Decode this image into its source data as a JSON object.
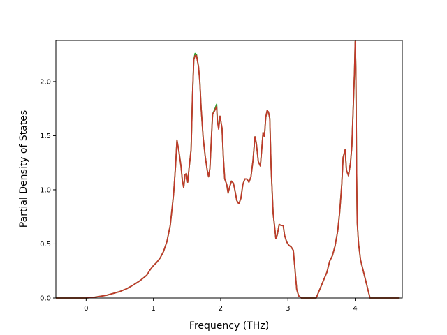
{
  "chart_data": {
    "type": "line",
    "title": "",
    "xlabel": "Frequency (THz)",
    "ylabel": "Partial Density of States",
    "xlim": [
      -0.45,
      4.7
    ],
    "ylim": [
      0.0,
      2.38
    ],
    "xticks": [
      0,
      1,
      2,
      3,
      4
    ],
    "yticks": [
      0.0,
      0.5,
      1.0,
      1.5,
      2.0
    ],
    "xtick_labels": [
      "0",
      "1",
      "2",
      "3",
      "4"
    ],
    "ytick_labels": [
      "0.0",
      "0.5",
      "1.0",
      "1.5",
      "2.0"
    ],
    "grid": false,
    "legend": "none",
    "series": [
      {
        "color": "#2ca02c",
        "points": [
          [
            -0.45,
            0
          ],
          [
            0,
            0
          ],
          [
            0.1,
            0.005
          ],
          [
            0.3,
            0.025
          ],
          [
            0.5,
            0.06
          ],
          [
            0.6,
            0.085
          ],
          [
            0.7,
            0.12
          ],
          [
            0.8,
            0.16
          ],
          [
            0.9,
            0.21
          ],
          [
            0.95,
            0.26
          ],
          [
            1.0,
            0.3
          ],
          [
            1.05,
            0.33
          ],
          [
            1.1,
            0.37
          ],
          [
            1.15,
            0.43
          ],
          [
            1.2,
            0.52
          ],
          [
            1.25,
            0.67
          ],
          [
            1.3,
            0.96
          ],
          [
            1.33,
            1.23
          ],
          [
            1.35,
            1.46
          ],
          [
            1.38,
            1.35
          ],
          [
            1.41,
            1.22
          ],
          [
            1.43,
            1.09
          ],
          [
            1.45,
            1.02
          ],
          [
            1.47,
            1.14
          ],
          [
            1.49,
            1.15
          ],
          [
            1.51,
            1.07
          ],
          [
            1.53,
            1.2
          ],
          [
            1.56,
            1.37
          ],
          [
            1.58,
            1.85
          ],
          [
            1.6,
            2.2
          ],
          [
            1.62,
            2.26
          ],
          [
            1.64,
            2.25
          ],
          [
            1.67,
            2.14
          ],
          [
            1.69,
            2.0
          ],
          [
            1.71,
            1.75
          ],
          [
            1.74,
            1.48
          ],
          [
            1.77,
            1.31
          ],
          [
            1.8,
            1.18
          ],
          [
            1.82,
            1.12
          ],
          [
            1.84,
            1.2
          ],
          [
            1.86,
            1.45
          ],
          [
            1.88,
            1.7
          ],
          [
            1.91,
            1.74
          ],
          [
            1.94,
            1.79
          ],
          [
            1.95,
            1.65
          ],
          [
            1.97,
            1.57
          ],
          [
            1.99,
            1.68
          ],
          [
            2.02,
            1.57
          ],
          [
            2.04,
            1.3
          ],
          [
            2.06,
            1.1
          ],
          [
            2.09,
            1.05
          ],
          [
            2.11,
            0.97
          ],
          [
            2.14,
            1.04
          ],
          [
            2.16,
            1.08
          ],
          [
            2.19,
            1.06
          ],
          [
            2.21,
            1.0
          ],
          [
            2.24,
            0.9
          ],
          [
            2.27,
            0.87
          ],
          [
            2.3,
            0.92
          ],
          [
            2.33,
            1.05
          ],
          [
            2.36,
            1.1
          ],
          [
            2.39,
            1.1
          ],
          [
            2.42,
            1.07
          ],
          [
            2.45,
            1.12
          ],
          [
            2.48,
            1.27
          ],
          [
            2.51,
            1.49
          ],
          [
            2.53,
            1.43
          ],
          [
            2.56,
            1.26
          ],
          [
            2.59,
            1.22
          ],
          [
            2.61,
            1.37
          ],
          [
            2.63,
            1.53
          ],
          [
            2.65,
            1.49
          ],
          [
            2.67,
            1.67
          ],
          [
            2.69,
            1.73
          ],
          [
            2.71,
            1.72
          ],
          [
            2.73,
            1.66
          ],
          [
            2.75,
            1.2
          ],
          [
            2.78,
            0.78
          ],
          [
            2.8,
            0.67
          ],
          [
            2.82,
            0.55
          ],
          [
            2.84,
            0.58
          ],
          [
            2.87,
            0.68
          ],
          [
            2.9,
            0.67
          ],
          [
            2.93,
            0.67
          ],
          [
            2.95,
            0.58
          ],
          [
            2.98,
            0.52
          ],
          [
            3.01,
            0.49
          ],
          [
            3.05,
            0.47
          ],
          [
            3.08,
            0.44
          ],
          [
            3.1,
            0.3
          ],
          [
            3.13,
            0.08
          ],
          [
            3.16,
            0.02
          ],
          [
            3.2,
            0.0
          ],
          [
            3.42,
            0.0
          ],
          [
            3.46,
            0.06
          ],
          [
            3.52,
            0.15
          ],
          [
            3.58,
            0.24
          ],
          [
            3.62,
            0.34
          ],
          [
            3.66,
            0.39
          ],
          [
            3.7,
            0.48
          ],
          [
            3.74,
            0.62
          ],
          [
            3.77,
            0.8
          ],
          [
            3.8,
            1.05
          ],
          [
            3.82,
            1.3
          ],
          [
            3.85,
            1.37
          ],
          [
            3.87,
            1.18
          ],
          [
            3.9,
            1.13
          ],
          [
            3.93,
            1.25
          ],
          [
            3.95,
            1.4
          ],
          [
            3.97,
            1.75
          ],
          [
            3.99,
            2.1
          ],
          [
            4.0,
            2.37
          ],
          [
            4.01,
            2.1
          ],
          [
            4.02,
            1.2
          ],
          [
            4.03,
            0.7
          ],
          [
            4.05,
            0.5
          ],
          [
            4.08,
            0.35
          ],
          [
            4.12,
            0.25
          ],
          [
            4.16,
            0.15
          ],
          [
            4.2,
            0.05
          ],
          [
            4.22,
            0.0
          ],
          [
            4.45,
            0.0
          ],
          [
            4.65,
            0.0
          ]
        ]
      },
      {
        "color": "#c0392b",
        "points": [
          [
            -0.45,
            0
          ],
          [
            0,
            0
          ],
          [
            0.1,
            0.005
          ],
          [
            0.3,
            0.025
          ],
          [
            0.5,
            0.06
          ],
          [
            0.6,
            0.085
          ],
          [
            0.7,
            0.12
          ],
          [
            0.8,
            0.16
          ],
          [
            0.9,
            0.21
          ],
          [
            0.95,
            0.26
          ],
          [
            1.0,
            0.3
          ],
          [
            1.05,
            0.33
          ],
          [
            1.1,
            0.37
          ],
          [
            1.15,
            0.43
          ],
          [
            1.2,
            0.52
          ],
          [
            1.25,
            0.67
          ],
          [
            1.3,
            0.96
          ],
          [
            1.33,
            1.23
          ],
          [
            1.35,
            1.46
          ],
          [
            1.38,
            1.35
          ],
          [
            1.41,
            1.22
          ],
          [
            1.43,
            1.09
          ],
          [
            1.45,
            1.02
          ],
          [
            1.47,
            1.14
          ],
          [
            1.49,
            1.15
          ],
          [
            1.51,
            1.07
          ],
          [
            1.53,
            1.2
          ],
          [
            1.56,
            1.37
          ],
          [
            1.58,
            1.85
          ],
          [
            1.6,
            2.2
          ],
          [
            1.62,
            2.24
          ],
          [
            1.64,
            2.24
          ],
          [
            1.67,
            2.14
          ],
          [
            1.69,
            2.0
          ],
          [
            1.71,
            1.75
          ],
          [
            1.74,
            1.48
          ],
          [
            1.77,
            1.31
          ],
          [
            1.8,
            1.18
          ],
          [
            1.82,
            1.12
          ],
          [
            1.84,
            1.2
          ],
          [
            1.86,
            1.45
          ],
          [
            1.88,
            1.7
          ],
          [
            1.91,
            1.73
          ],
          [
            1.94,
            1.77
          ],
          [
            1.95,
            1.64
          ],
          [
            1.97,
            1.56
          ],
          [
            1.99,
            1.68
          ],
          [
            2.02,
            1.57
          ],
          [
            2.04,
            1.3
          ],
          [
            2.06,
            1.1
          ],
          [
            2.09,
            1.05
          ],
          [
            2.11,
            0.97
          ],
          [
            2.14,
            1.04
          ],
          [
            2.16,
            1.08
          ],
          [
            2.19,
            1.06
          ],
          [
            2.21,
            1.0
          ],
          [
            2.24,
            0.9
          ],
          [
            2.27,
            0.87
          ],
          [
            2.3,
            0.92
          ],
          [
            2.33,
            1.05
          ],
          [
            2.36,
            1.1
          ],
          [
            2.39,
            1.1
          ],
          [
            2.42,
            1.07
          ],
          [
            2.45,
            1.12
          ],
          [
            2.48,
            1.27
          ],
          [
            2.51,
            1.49
          ],
          [
            2.53,
            1.43
          ],
          [
            2.56,
            1.26
          ],
          [
            2.59,
            1.22
          ],
          [
            2.61,
            1.37
          ],
          [
            2.63,
            1.53
          ],
          [
            2.65,
            1.49
          ],
          [
            2.67,
            1.67
          ],
          [
            2.69,
            1.73
          ],
          [
            2.71,
            1.72
          ],
          [
            2.73,
            1.66
          ],
          [
            2.75,
            1.2
          ],
          [
            2.78,
            0.78
          ],
          [
            2.8,
            0.67
          ],
          [
            2.82,
            0.55
          ],
          [
            2.84,
            0.58
          ],
          [
            2.87,
            0.68
          ],
          [
            2.9,
            0.67
          ],
          [
            2.93,
            0.67
          ],
          [
            2.95,
            0.58
          ],
          [
            2.98,
            0.52
          ],
          [
            3.01,
            0.49
          ],
          [
            3.05,
            0.47
          ],
          [
            3.08,
            0.44
          ],
          [
            3.1,
            0.3
          ],
          [
            3.13,
            0.08
          ],
          [
            3.16,
            0.02
          ],
          [
            3.2,
            0.0
          ],
          [
            3.42,
            0.0
          ],
          [
            3.46,
            0.06
          ],
          [
            3.52,
            0.15
          ],
          [
            3.58,
            0.24
          ],
          [
            3.62,
            0.34
          ],
          [
            3.66,
            0.39
          ],
          [
            3.7,
            0.48
          ],
          [
            3.74,
            0.62
          ],
          [
            3.77,
            0.8
          ],
          [
            3.8,
            1.05
          ],
          [
            3.82,
            1.3
          ],
          [
            3.85,
            1.37
          ],
          [
            3.87,
            1.18
          ],
          [
            3.9,
            1.13
          ],
          [
            3.93,
            1.25
          ],
          [
            3.95,
            1.4
          ],
          [
            3.97,
            1.75
          ],
          [
            3.99,
            2.1
          ],
          [
            4.0,
            2.37
          ],
          [
            4.01,
            2.1
          ],
          [
            4.02,
            1.2
          ],
          [
            4.03,
            0.7
          ],
          [
            4.05,
            0.5
          ],
          [
            4.08,
            0.35
          ],
          [
            4.12,
            0.25
          ],
          [
            4.16,
            0.15
          ],
          [
            4.2,
            0.05
          ],
          [
            4.22,
            0.0
          ],
          [
            4.45,
            0.0
          ],
          [
            4.65,
            0.0
          ]
        ]
      }
    ]
  }
}
